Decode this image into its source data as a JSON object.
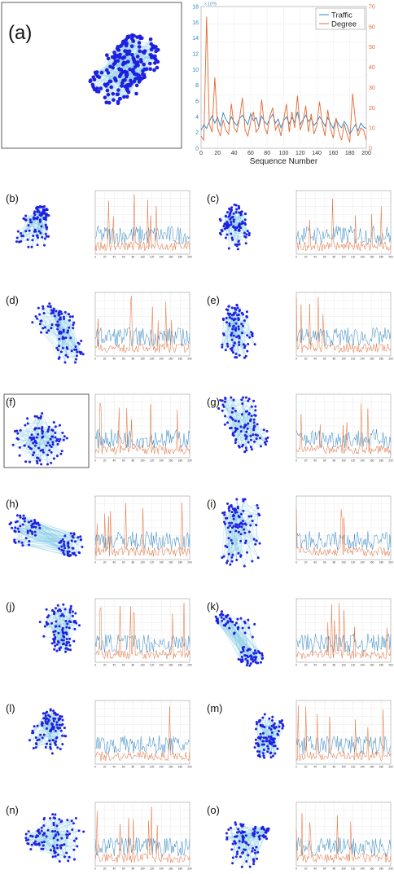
{
  "colors": {
    "traffic": "#2e86c1",
    "degree": "#e46a32",
    "node": "#1f1fe0",
    "edge": "#7ec8e3",
    "grid": "#e6e6e6",
    "frame": "#333333"
  },
  "chart_data": [
    {
      "panel": "a",
      "label": "(a)",
      "type": "line",
      "x_ticks": [
        "0",
        "20",
        "40",
        "60",
        "80",
        "100",
        "120",
        "140",
        "160",
        "180",
        "200"
      ],
      "xlabel": "Sequence Number",
      "y_left_ticks": [
        "0",
        "2",
        "4",
        "6",
        "8",
        "10",
        "12",
        "14",
        "16",
        "18"
      ],
      "y_left_exponent": "× 10^5",
      "y_right_ticks": [
        "0",
        "10",
        "20",
        "30",
        "40",
        "50",
        "60",
        "70"
      ],
      "xlim": [
        0,
        200
      ],
      "ylim_left": [
        0,
        18
      ],
      "ylim_right": [
        0,
        70
      ],
      "legend_position": "top-right",
      "series": [
        {
          "name": "Traffic",
          "axis": "left",
          "values": [
            2.3,
            3.0,
            2.5,
            3.4,
            4.1,
            3.2,
            3.9,
            2.8,
            4.5,
            3.7,
            3.1,
            4.0,
            3.3,
            2.9,
            3.8,
            4.2,
            3.6,
            3.0,
            4.4,
            3.5,
            3.9,
            2.7,
            4.1,
            3.4,
            3.0,
            3.8,
            4.3,
            3.2,
            3.7,
            2.6,
            3.5,
            4.0,
            3.1,
            3.9,
            3.3,
            4.6,
            3.0,
            3.6,
            4.2,
            3.4,
            3.8,
            2.9,
            3.3,
            4.0,
            3.5,
            2.8,
            3.9,
            3.2,
            2.5,
            3.7,
            3.0,
            2.6,
            3.4,
            2.9,
            1.8,
            2.4,
            3.0,
            2.2,
            3.2,
            2.7,
            2.5
          ]
        },
        {
          "name": "Degree",
          "axis": "right",
          "values": [
            6,
            4,
            65,
            12,
            8,
            35,
            10,
            6,
            14,
            9,
            7,
            22,
            10,
            8,
            15,
            25,
            9,
            6,
            13,
            18,
            8,
            10,
            24,
            11,
            7,
            16,
            20,
            9,
            12,
            6,
            14,
            22,
            8,
            18,
            10,
            26,
            9,
            13,
            21,
            8,
            17,
            7,
            11,
            23,
            12,
            6,
            19,
            10,
            5,
            15,
            8,
            4,
            12,
            7,
            3,
            27,
            14,
            6,
            10,
            9,
            4
          ]
        }
      ]
    },
    {
      "panel": "b",
      "label": "(b)",
      "type": "line",
      "x_ticks": [
        "0",
        "20",
        "40",
        "60",
        "80",
        "100",
        "120",
        "140",
        "160",
        "180",
        "200"
      ],
      "xlim": [
        0,
        200
      ],
      "ylim_left": [
        0,
        1
      ],
      "ylim_right": [
        0,
        1
      ]
    },
    {
      "panel": "c",
      "label": "(c)",
      "type": "line",
      "x_ticks": [
        "0",
        "20",
        "40",
        "60",
        "80",
        "100",
        "120",
        "140",
        "160",
        "180",
        "200"
      ],
      "xlim": [
        0,
        200
      ],
      "ylim_left": [
        0,
        1
      ],
      "ylim_right": [
        0,
        1
      ]
    },
    {
      "panel": "d",
      "label": "(d)",
      "type": "line",
      "x_ticks": [
        "0",
        "20",
        "40",
        "60",
        "80",
        "100",
        "120",
        "140",
        "160",
        "180",
        "200"
      ],
      "xlim": [
        0,
        200
      ],
      "ylim_left": [
        0,
        1
      ],
      "ylim_right": [
        0,
        1
      ]
    },
    {
      "panel": "e",
      "label": "(e)",
      "type": "line",
      "x_ticks": [
        "0",
        "20",
        "40",
        "60",
        "80",
        "100",
        "120",
        "140",
        "160",
        "180",
        "200"
      ],
      "xlim": [
        0,
        200
      ],
      "ylim_left": [
        0,
        1
      ],
      "ylim_right": [
        0,
        1
      ]
    },
    {
      "panel": "f",
      "label": "(f)",
      "type": "line",
      "x_ticks": [
        "0",
        "20",
        "40",
        "60",
        "80",
        "100",
        "120",
        "140",
        "160",
        "180",
        "200"
      ],
      "xlim": [
        0,
        200
      ],
      "ylim_left": [
        0,
        1
      ],
      "ylim_right": [
        0,
        1
      ]
    },
    {
      "panel": "g",
      "label": "(g)",
      "type": "line",
      "x_ticks": [
        "0",
        "20",
        "40",
        "60",
        "80",
        "100",
        "120",
        "140",
        "160",
        "180",
        "200"
      ],
      "xlim": [
        0,
        200
      ],
      "ylim_left": [
        0,
        1
      ],
      "ylim_right": [
        0,
        1
      ]
    },
    {
      "panel": "h",
      "label": "(h)",
      "type": "line",
      "x_ticks": [
        "0",
        "20",
        "40",
        "60",
        "80",
        "100",
        "120",
        "140",
        "160",
        "180",
        "200"
      ],
      "xlim": [
        0,
        200
      ],
      "ylim_left": [
        0,
        1
      ],
      "ylim_right": [
        0,
        1
      ]
    },
    {
      "panel": "i",
      "label": "(i)",
      "type": "line",
      "x_ticks": [
        "0",
        "20",
        "40",
        "60",
        "80",
        "100",
        "120",
        "140",
        "160",
        "180",
        "200"
      ],
      "xlim": [
        0,
        200
      ],
      "ylim_left": [
        0,
        1
      ],
      "ylim_right": [
        0,
        1
      ]
    },
    {
      "panel": "j",
      "label": "(j)",
      "type": "line",
      "x_ticks": [
        "0",
        "20",
        "40",
        "60",
        "80",
        "100",
        "120",
        "140",
        "160",
        "180",
        "200"
      ],
      "xlim": [
        0,
        200
      ],
      "ylim_left": [
        0,
        1
      ],
      "ylim_right": [
        0,
        1
      ]
    },
    {
      "panel": "k",
      "label": "(k)",
      "type": "line",
      "x_ticks": [
        "0",
        "20",
        "40",
        "60",
        "80",
        "100",
        "120",
        "140",
        "160",
        "180",
        "200"
      ],
      "xlim": [
        0,
        200
      ],
      "ylim_left": [
        0,
        1
      ],
      "ylim_right": [
        0,
        1
      ]
    },
    {
      "panel": "l",
      "label": "(l)",
      "type": "line",
      "x_ticks": [
        "0",
        "20",
        "40",
        "60",
        "80",
        "100",
        "120",
        "140",
        "160",
        "180",
        "200"
      ],
      "xlim": [
        0,
        200
      ],
      "ylim_left": [
        0,
        1
      ],
      "ylim_right": [
        0,
        1
      ]
    },
    {
      "panel": "m",
      "label": "(m)",
      "type": "line",
      "x_ticks": [
        "0",
        "20",
        "40",
        "60",
        "80",
        "100",
        "120",
        "140",
        "160",
        "180",
        "200"
      ],
      "xlim": [
        0,
        200
      ],
      "ylim_left": [
        0,
        1
      ],
      "ylim_right": [
        0,
        1
      ]
    },
    {
      "panel": "n",
      "label": "(n)",
      "type": "line",
      "x_ticks": [
        "0",
        "20",
        "40",
        "60",
        "80",
        "100",
        "120",
        "140",
        "160",
        "180",
        "200"
      ],
      "xlim": [
        0,
        200
      ],
      "ylim_left": [
        0,
        1
      ],
      "ylim_right": [
        0,
        1
      ]
    },
    {
      "panel": "o",
      "label": "(o)",
      "type": "line",
      "x_ticks": [
        "0",
        "20",
        "40",
        "60",
        "80",
        "100",
        "120",
        "140",
        "160",
        "180",
        "200"
      ],
      "xlim": [
        0,
        200
      ],
      "ylim_left": [
        0,
        1
      ],
      "ylim_right": [
        0,
        1
      ]
    }
  ]
}
